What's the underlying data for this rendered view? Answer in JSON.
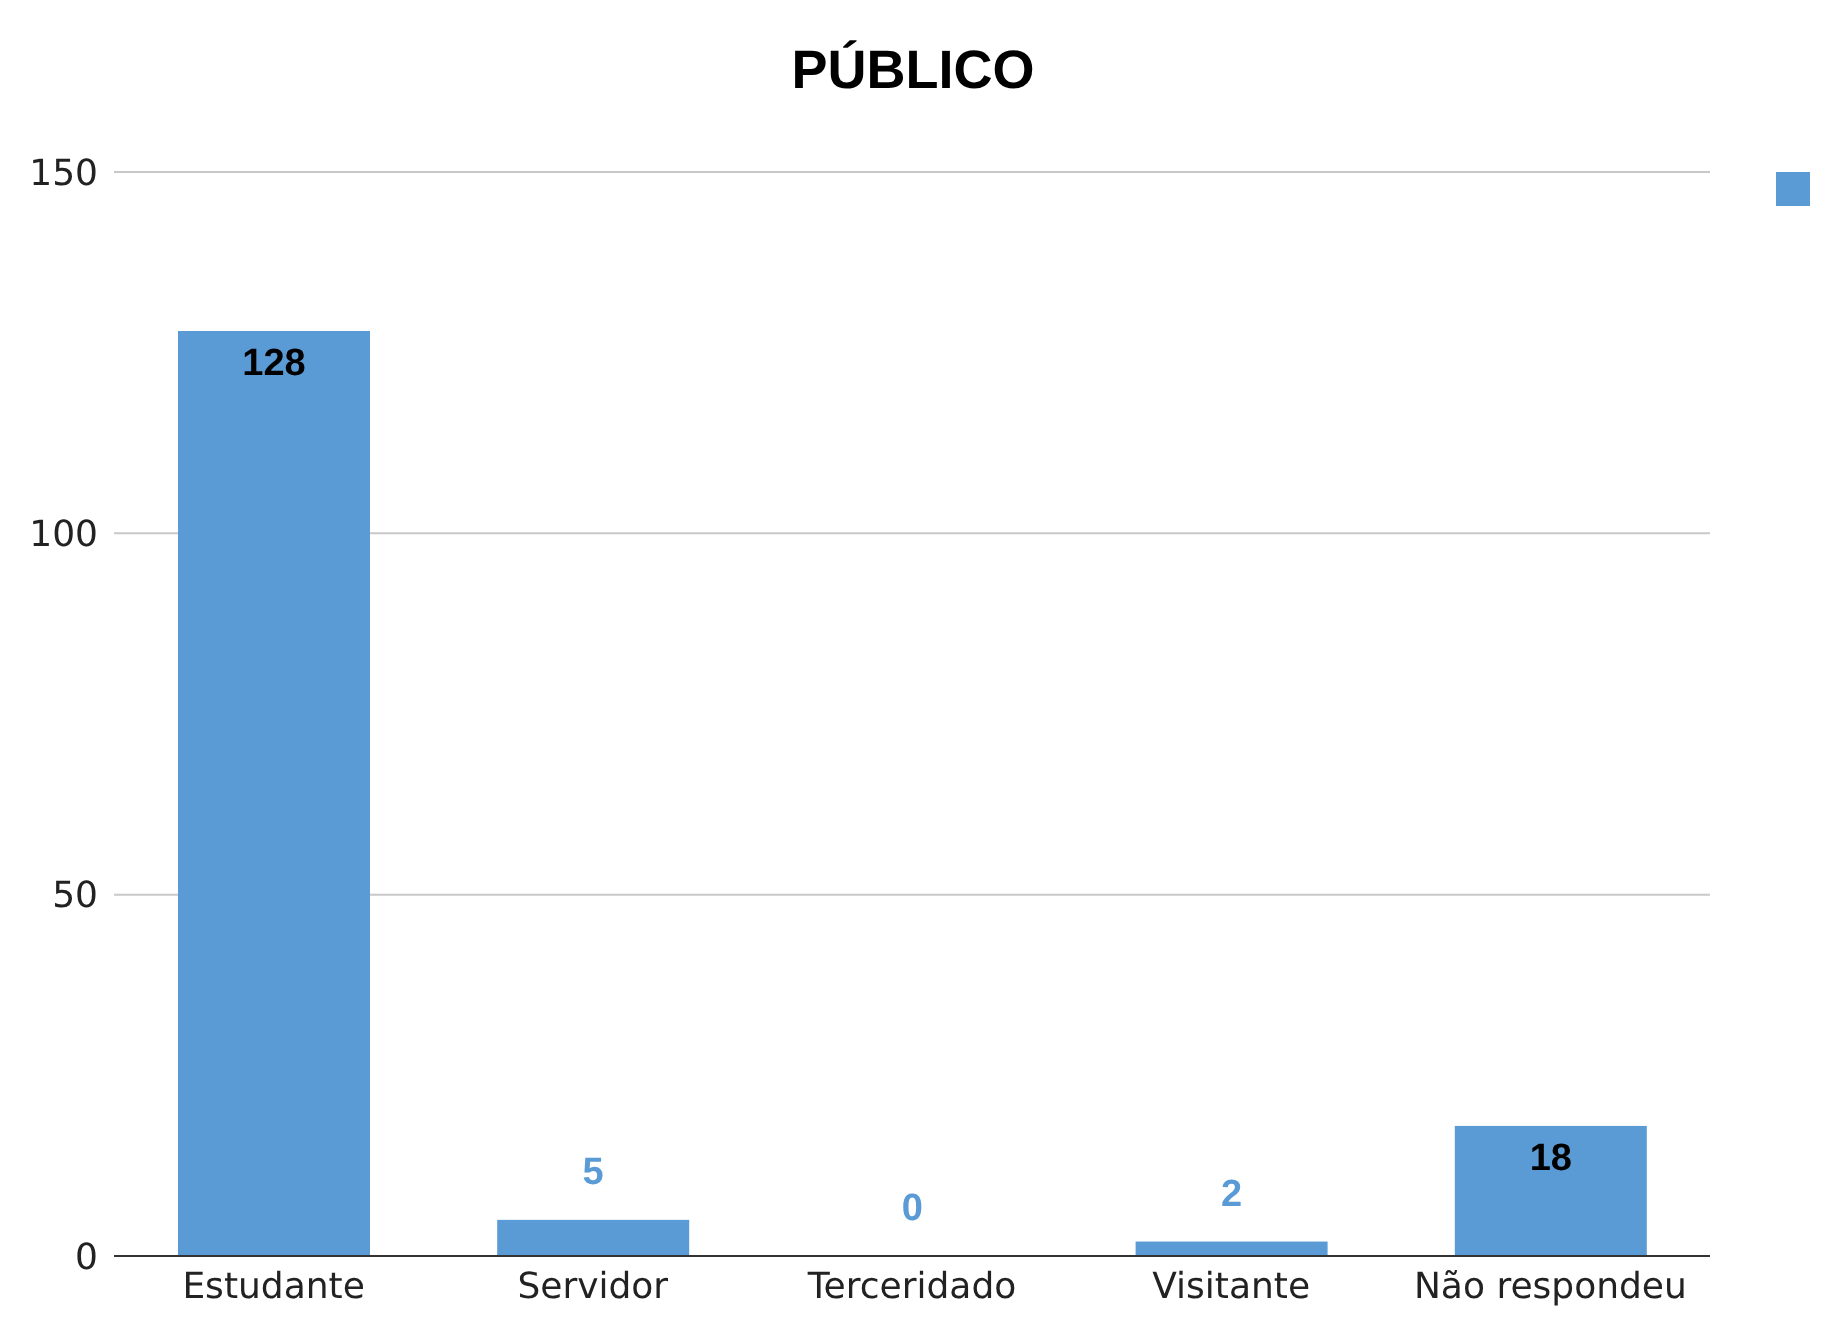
{
  "chart_data": {
    "type": "bar",
    "title": "PÚBLICO",
    "categories": [
      "Estudante",
      "Servidor",
      "Terceridado",
      "Visitante",
      "Não respondeu"
    ],
    "values": [
      128,
      5,
      0,
      2,
      18
    ],
    "color": "#5b9bd5",
    "ylim": [
      0,
      150
    ],
    "yticks": [
      0,
      50,
      100,
      150
    ],
    "grid": "y",
    "data_labels": true
  }
}
